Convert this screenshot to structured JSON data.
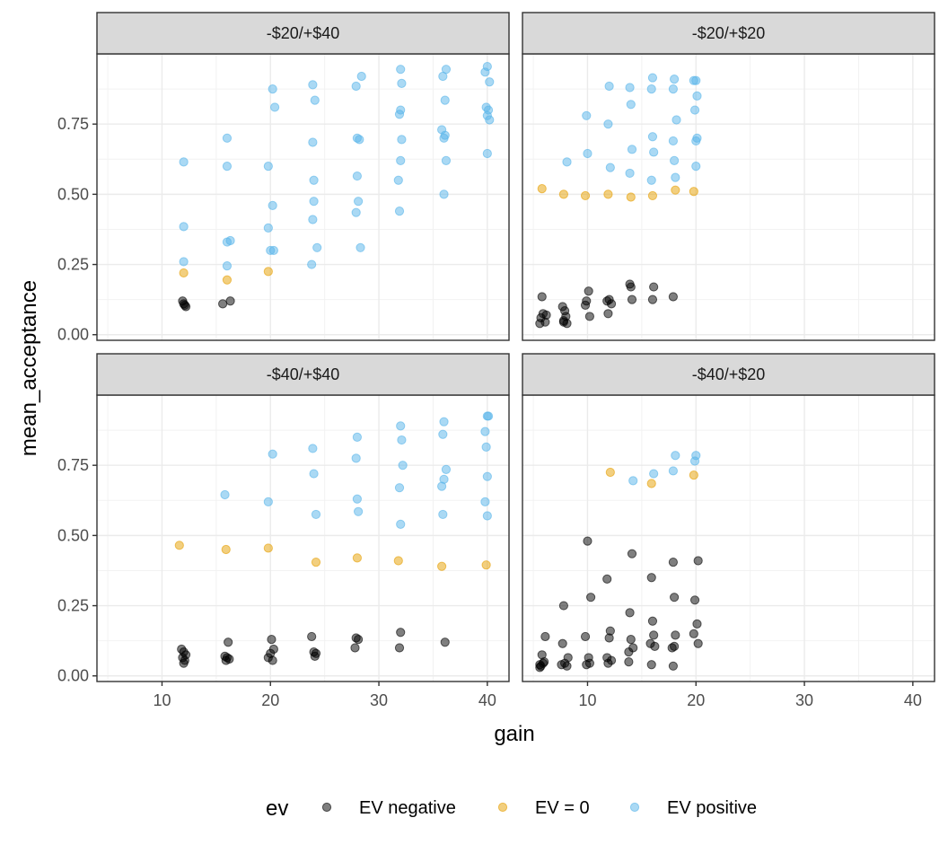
{
  "chart_data": {
    "type": "scatter",
    "xlabel": "gain",
    "ylabel": "mean_acceptance",
    "legend_title": "ev",
    "legend_position": "bottom",
    "grid": true,
    "x_ticks": [
      10,
      20,
      30,
      40
    ],
    "y_ticks": [
      "0.00",
      "0.25",
      "0.50",
      "0.75"
    ],
    "xlim": [
      4,
      42
    ],
    "ylim": [
      -0.02,
      1.0
    ],
    "series_styles": [
      {
        "name": "EV negative",
        "color": "#000000"
      },
      {
        "name": "EV = 0",
        "color": "#E69F00"
      },
      {
        "name": "EV positive",
        "color": "#56B4E9"
      }
    ],
    "panels": [
      {
        "label": "-$20/+$40",
        "points": {
          "EV negative": [
            [
              12,
              0.11
            ],
            [
              12.2,
              0.1
            ],
            [
              11.9,
              0.12
            ],
            [
              12.1,
              0.105
            ],
            [
              15.6,
              0.11
            ],
            [
              16.3,
              0.12
            ]
          ],
          "EV = 0": [
            [
              12,
              0.22
            ],
            [
              16,
              0.195
            ],
            [
              19.8,
              0.225
            ]
          ],
          "EV positive": [
            [
              12,
              0.615
            ],
            [
              12,
              0.385
            ],
            [
              12,
              0.26
            ],
            [
              16,
              0.7
            ],
            [
              16,
              0.6
            ],
            [
              16,
              0.33
            ],
            [
              16.3,
              0.335
            ],
            [
              16,
              0.245
            ],
            [
              20.2,
              0.875
            ],
            [
              20.4,
              0.81
            ],
            [
              19.8,
              0.6
            ],
            [
              20.2,
              0.46
            ],
            [
              19.8,
              0.38
            ],
            [
              20,
              0.3
            ],
            [
              20.3,
              0.3
            ],
            [
              23.9,
              0.89
            ],
            [
              24.1,
              0.835
            ],
            [
              23.9,
              0.685
            ],
            [
              24,
              0.55
            ],
            [
              24,
              0.475
            ],
            [
              23.9,
              0.41
            ],
            [
              24.3,
              0.31
            ],
            [
              23.8,
              0.25
            ],
            [
              28.4,
              0.92
            ],
            [
              27.9,
              0.885
            ],
            [
              28,
              0.7
            ],
            [
              28.2,
              0.695
            ],
            [
              28,
              0.565
            ],
            [
              28.1,
              0.475
            ],
            [
              27.9,
              0.435
            ],
            [
              28.3,
              0.31
            ],
            [
              32,
              0.945
            ],
            [
              32.1,
              0.895
            ],
            [
              32,
              0.8
            ],
            [
              31.9,
              0.785
            ],
            [
              32.1,
              0.695
            ],
            [
              32,
              0.62
            ],
            [
              31.8,
              0.55
            ],
            [
              31.9,
              0.44
            ],
            [
              36.2,
              0.945
            ],
            [
              35.9,
              0.92
            ],
            [
              36.1,
              0.835
            ],
            [
              35.8,
              0.73
            ],
            [
              36.1,
              0.71
            ],
            [
              36,
              0.7
            ],
            [
              36.2,
              0.62
            ],
            [
              36,
              0.5
            ],
            [
              40,
              0.955
            ],
            [
              39.8,
              0.935
            ],
            [
              40.2,
              0.9
            ],
            [
              39.9,
              0.81
            ],
            [
              40.1,
              0.8
            ],
            [
              40,
              0.78
            ],
            [
              40.2,
              0.765
            ],
            [
              40,
              0.645
            ]
          ]
        }
      },
      {
        "label": "-$20/+$20",
        "points": {
          "EV negative": [
            [
              5.6,
              0.04
            ],
            [
              5.7,
              0.06
            ],
            [
              5.9,
              0.075
            ],
            [
              6.1,
              0.045
            ],
            [
              5.8,
              0.135
            ],
            [
              6.2,
              0.07
            ],
            [
              7.7,
              0.1
            ],
            [
              7.8,
              0.05
            ],
            [
              8,
              0.065
            ],
            [
              8.1,
              0.04
            ],
            [
              7.9,
              0.085
            ],
            [
              7.8,
              0.045
            ],
            [
              9.9,
              0.12
            ],
            [
              10.1,
              0.155
            ],
            [
              10.2,
              0.065
            ],
            [
              9.8,
              0.105
            ],
            [
              11.8,
              0.12
            ],
            [
              12.2,
              0.11
            ],
            [
              11.9,
              0.075
            ],
            [
              12,
              0.125
            ],
            [
              13.9,
              0.18
            ],
            [
              14,
              0.17
            ],
            [
              14.1,
              0.125
            ],
            [
              16.1,
              0.17
            ],
            [
              16,
              0.125
            ],
            [
              17.9,
              0.135
            ]
          ],
          "EV = 0": [
            [
              5.8,
              0.52
            ],
            [
              7.8,
              0.5
            ],
            [
              9.8,
              0.495
            ],
            [
              11.9,
              0.5
            ],
            [
              14,
              0.49
            ],
            [
              16,
              0.495
            ],
            [
              18.1,
              0.515
            ],
            [
              19.8,
              0.51
            ]
          ],
          "EV positive": [
            [
              8.1,
              0.615
            ],
            [
              9.9,
              0.78
            ],
            [
              10,
              0.645
            ],
            [
              12,
              0.885
            ],
            [
              11.9,
              0.75
            ],
            [
              12.1,
              0.595
            ],
            [
              13.9,
              0.88
            ],
            [
              14,
              0.82
            ],
            [
              14.1,
              0.66
            ],
            [
              13.9,
              0.575
            ],
            [
              16,
              0.915
            ],
            [
              15.9,
              0.875
            ],
            [
              16,
              0.705
            ],
            [
              16.1,
              0.65
            ],
            [
              15.9,
              0.55
            ],
            [
              18,
              0.91
            ],
            [
              17.9,
              0.875
            ],
            [
              18.2,
              0.765
            ],
            [
              17.9,
              0.69
            ],
            [
              18,
              0.62
            ],
            [
              18.1,
              0.56
            ],
            [
              19.8,
              0.905
            ],
            [
              20,
              0.905
            ],
            [
              20.1,
              0.85
            ],
            [
              19.9,
              0.8
            ],
            [
              20.1,
              0.7
            ],
            [
              20,
              0.69
            ],
            [
              20,
              0.6
            ]
          ]
        }
      },
      {
        "label": "-$40/+$40",
        "points": {
          "EV negative": [
            [
              11.8,
              0.095
            ],
            [
              12,
              0.085
            ],
            [
              12.2,
              0.075
            ],
            [
              11.9,
              0.065
            ],
            [
              12.1,
              0.055
            ],
            [
              12,
              0.045
            ],
            [
              16.1,
              0.12
            ],
            [
              15.8,
              0.07
            ],
            [
              16,
              0.065
            ],
            [
              16.2,
              0.06
            ],
            [
              15.9,
              0.055
            ],
            [
              20.1,
              0.13
            ],
            [
              20.3,
              0.095
            ],
            [
              20,
              0.08
            ],
            [
              19.8,
              0.065
            ],
            [
              20.2,
              0.055
            ],
            [
              23.8,
              0.14
            ],
            [
              24,
              0.085
            ],
            [
              24.2,
              0.08
            ],
            [
              24.1,
              0.07
            ],
            [
              27.9,
              0.135
            ],
            [
              28.1,
              0.13
            ],
            [
              27.8,
              0.1
            ],
            [
              32,
              0.155
            ],
            [
              31.9,
              0.1
            ],
            [
              36.1,
              0.12
            ]
          ],
          "EV = 0": [
            [
              11.6,
              0.465
            ],
            [
              15.9,
              0.45
            ],
            [
              19.8,
              0.455
            ],
            [
              24.2,
              0.405
            ],
            [
              28,
              0.42
            ],
            [
              31.8,
              0.41
            ],
            [
              35.8,
              0.39
            ],
            [
              39.9,
              0.395
            ]
          ],
          "EV positive": [
            [
              15.8,
              0.645
            ],
            [
              19.8,
              0.62
            ],
            [
              20.2,
              0.79
            ],
            [
              23.9,
              0.81
            ],
            [
              24,
              0.72
            ],
            [
              24.2,
              0.575
            ],
            [
              28,
              0.85
            ],
            [
              27.9,
              0.775
            ],
            [
              28,
              0.63
            ],
            [
              28.1,
              0.585
            ],
            [
              32,
              0.89
            ],
            [
              32.1,
              0.84
            ],
            [
              32.2,
              0.75
            ],
            [
              31.9,
              0.67
            ],
            [
              32,
              0.54
            ],
            [
              36,
              0.905
            ],
            [
              35.9,
              0.86
            ],
            [
              36.2,
              0.735
            ],
            [
              36,
              0.7
            ],
            [
              35.8,
              0.675
            ],
            [
              35.9,
              0.575
            ],
            [
              40,
              0.925
            ],
            [
              40.1,
              0.925
            ],
            [
              39.8,
              0.87
            ],
            [
              39.9,
              0.815
            ],
            [
              40,
              0.71
            ],
            [
              39.8,
              0.62
            ],
            [
              40,
              0.57
            ]
          ]
        }
      },
      {
        "label": "-$40/+$20",
        "points": {
          "EV negative": [
            [
              5.6,
              0.04
            ],
            [
              5.7,
              0.035
            ],
            [
              5.9,
              0.045
            ],
            [
              5.8,
              0.075
            ],
            [
              6.1,
              0.14
            ],
            [
              5.6,
              0.03
            ],
            [
              6,
              0.05
            ],
            [
              7.6,
              0.04
            ],
            [
              7.8,
              0.25
            ],
            [
              7.7,
              0.115
            ],
            [
              8.1,
              0.035
            ],
            [
              7.9,
              0.045
            ],
            [
              8.2,
              0.065
            ],
            [
              9.8,
              0.14
            ],
            [
              10,
              0.48
            ],
            [
              10.3,
              0.28
            ],
            [
              10.1,
              0.065
            ],
            [
              9.9,
              0.04
            ],
            [
              10.2,
              0.045
            ],
            [
              11.8,
              0.345
            ],
            [
              12.1,
              0.16
            ],
            [
              12,
              0.135
            ],
            [
              11.8,
              0.065
            ],
            [
              11.9,
              0.045
            ],
            [
              12.2,
              0.055
            ],
            [
              14.1,
              0.435
            ],
            [
              13.9,
              0.225
            ],
            [
              14,
              0.13
            ],
            [
              13.8,
              0.085
            ],
            [
              14.2,
              0.1
            ],
            [
              13.8,
              0.05
            ],
            [
              15.9,
              0.35
            ],
            [
              16,
              0.195
            ],
            [
              16.1,
              0.145
            ],
            [
              15.8,
              0.115
            ],
            [
              16.2,
              0.105
            ],
            [
              15.9,
              0.04
            ],
            [
              17.9,
              0.405
            ],
            [
              18,
              0.28
            ],
            [
              18.1,
              0.145
            ],
            [
              17.8,
              0.1
            ],
            [
              17.9,
              0.035
            ],
            [
              18,
              0.105
            ],
            [
              20.2,
              0.41
            ],
            [
              19.9,
              0.27
            ],
            [
              20.1,
              0.185
            ],
            [
              19.8,
              0.15
            ],
            [
              20.2,
              0.115
            ]
          ],
          "EV = 0": [
            [
              12.1,
              0.725
            ],
            [
              15.9,
              0.685
            ],
            [
              19.8,
              0.715
            ]
          ],
          "EV positive": [
            [
              14.2,
              0.695
            ],
            [
              16.1,
              0.72
            ],
            [
              18.1,
              0.785
            ],
            [
              17.9,
              0.73
            ],
            [
              20,
              0.785
            ],
            [
              19.9,
              0.765
            ]
          ]
        }
      }
    ]
  }
}
